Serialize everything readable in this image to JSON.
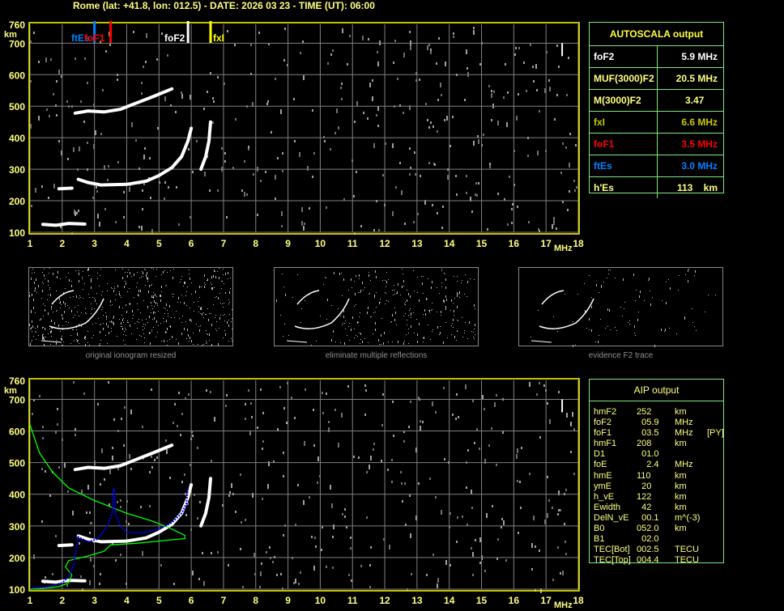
{
  "title": "Rome (lat: +41.8, lon: 012.5) - DATE: 2026 03 23 - TIME (UT): 06:00",
  "colors": {
    "axis": "#ffff00",
    "grid": "#808080",
    "trace": "#ffffff",
    "foF2": "#ffffff",
    "fxI": "#ffff00",
    "foF1": "#ff0000",
    "ftEs": "#0080ff",
    "profile": "#00ff00",
    "aip_trace": "#0000ff",
    "table_border": "#80e880"
  },
  "axes": {
    "y_unit": "km",
    "x_unit": "MHz",
    "x_ticks": [
      1,
      2,
      3,
      4,
      5,
      6,
      7,
      8,
      9,
      10,
      11,
      12,
      13,
      14,
      15,
      16,
      17,
      18
    ],
    "y_ticks": [
      100,
      200,
      300,
      400,
      500,
      600,
      700,
      760
    ],
    "xlim": [
      1,
      18
    ],
    "ylim": [
      100,
      760
    ]
  },
  "markers": [
    {
      "label": "ftEs",
      "freq": 3.0,
      "color": "#0080ff"
    },
    {
      "label": "foF1",
      "freq": 3.5,
      "color": "#ff0000"
    },
    {
      "label": "foF2",
      "freq": 5.9,
      "color": "#ffffff"
    },
    {
      "label": "fxI",
      "freq": 6.6,
      "color": "#ffff00"
    }
  ],
  "traces": {
    "es": [
      [
        1.4,
        125
      ],
      [
        1.8,
        122
      ],
      [
        2.2,
        128
      ],
      [
        2.7,
        126
      ]
    ],
    "f_low": [
      [
        1.9,
        238
      ],
      [
        2.3,
        240
      ]
    ],
    "f": [
      [
        2.5,
        268
      ],
      [
        2.8,
        258
      ],
      [
        3.2,
        250
      ],
      [
        4.0,
        252
      ],
      [
        4.6,
        262
      ],
      [
        5.0,
        280
      ],
      [
        5.4,
        305
      ],
      [
        5.7,
        340
      ],
      [
        5.9,
        390
      ],
      [
        6.0,
        430
      ]
    ],
    "f2hop": [
      [
        2.4,
        478
      ],
      [
        2.8,
        485
      ],
      [
        3.3,
        482
      ],
      [
        3.8,
        490
      ],
      [
        4.3,
        510
      ],
      [
        4.8,
        530
      ],
      [
        5.4,
        555
      ]
    ],
    "x": [
      [
        6.3,
        300
      ],
      [
        6.45,
        340
      ],
      [
        6.55,
        390
      ],
      [
        6.6,
        450
      ]
    ]
  },
  "aip_trace": [
    [
      1.0,
      104
    ],
    [
      1.5,
      106
    ],
    [
      2.0,
      120
    ],
    [
      2.2,
      140
    ],
    [
      2.35,
      175
    ],
    [
      2.5,
      265
    ],
    [
      2.8,
      250
    ],
    [
      3.1,
      258
    ],
    [
      3.4,
      300
    ],
    [
      3.55,
      340
    ],
    [
      3.6,
      420
    ],
    [
      3.65,
      340
    ],
    [
      3.8,
      300
    ],
    [
      4.0,
      280
    ],
    [
      4.5,
      278
    ],
    [
      5.0,
      290
    ],
    [
      5.4,
      310
    ],
    [
      5.7,
      340
    ],
    [
      5.85,
      370
    ],
    [
      5.9,
      420
    ]
  ],
  "aip_profile": [
    [
      1.0,
      620
    ],
    [
      1.3,
      530
    ],
    [
      1.7,
      470
    ],
    [
      2.2,
      420
    ],
    [
      3.0,
      380
    ],
    [
      4.0,
      340
    ],
    [
      4.8,
      315
    ],
    [
      5.3,
      295
    ],
    [
      5.8,
      270
    ],
    [
      5.8,
      260
    ],
    [
      5.3,
      255
    ],
    [
      4.3,
      245
    ],
    [
      3.5,
      240
    ],
    [
      3.3,
      220
    ],
    [
      2.8,
      205
    ],
    [
      2.2,
      190
    ],
    [
      2.1,
      170
    ],
    [
      2.3,
      145
    ],
    [
      2.2,
      120
    ],
    [
      1.9,
      108
    ],
    [
      1.3,
      102
    ],
    [
      1.0,
      100
    ]
  ],
  "autoscala": {
    "header": "AUTOSCALA output",
    "rows": [
      {
        "label": "foF2",
        "value": "5.9 MHz",
        "color": "#ffffff"
      },
      {
        "label": "MUF(3000)F2",
        "value": "20.5 MHz",
        "color": "#ffff80"
      },
      {
        "label": "M(3000)F2",
        "value": "3.47     ",
        "color": "#ffff80"
      },
      {
        "label": "fxI",
        "value": "6.6 MHz",
        "color": "#c8c800"
      },
      {
        "label": "foF1",
        "value": "3.5 MHz",
        "color": "#ff0000"
      },
      {
        "label": "ftEs",
        "value": "3.0 MHz",
        "color": "#0080ff"
      },
      {
        "label": "h'Es",
        "value": "113    km",
        "color": "#ffff80"
      }
    ]
  },
  "thumbnails": [
    {
      "label": "original ionogram resized"
    },
    {
      "label": "eliminate multiple reflections"
    },
    {
      "label": "evidence F2 trace"
    }
  ],
  "aip": {
    "header": "AIP output",
    "rows": [
      [
        "hmF2",
        "252",
        "km",
        ""
      ],
      [
        "foF2",
        "  05.9",
        "MHz",
        ""
      ],
      [
        "foF1",
        "  03.5",
        "MHz",
        "[PY]"
      ],
      [
        "hmF1",
        "208",
        "km",
        ""
      ],
      [
        "D1",
        "  01.0",
        "",
        ""
      ],
      [
        "foE",
        "    2.4",
        "MHz",
        ""
      ],
      [
        "hmE",
        "110",
        "km",
        ""
      ],
      [
        "ymE",
        "  20",
        "km",
        ""
      ],
      [
        "h_vE",
        "122",
        "km",
        ""
      ],
      [
        "Ewidth",
        "  42",
        "km",
        ""
      ],
      [
        "DelN_vE",
        "  00.1",
        "m^(-3)",
        ""
      ],
      [
        "B0",
        "052.0",
        "km",
        ""
      ],
      [
        "B1",
        "  02.0",
        "",
        ""
      ],
      [
        "TEC[Bot]",
        "002.5",
        "TECU",
        ""
      ],
      [
        "TEC[Top]",
        "004.4",
        "TECU",
        ""
      ]
    ]
  }
}
